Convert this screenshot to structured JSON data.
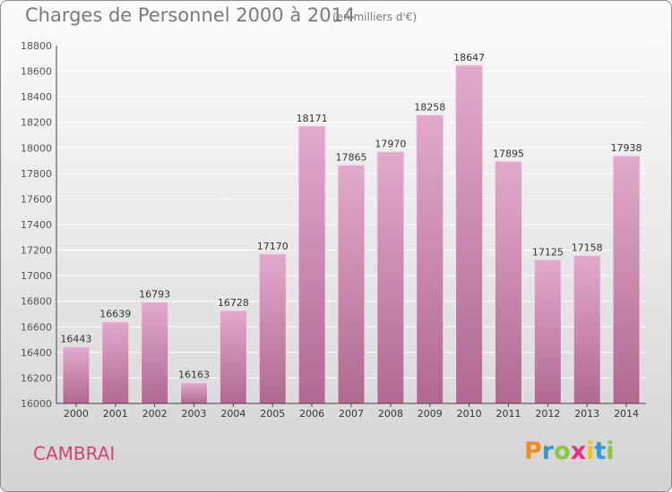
{
  "header": {
    "title": "Charges de Personnel 2000 à 2014",
    "subtitle": "(en milliers d'€)"
  },
  "footer": {
    "commune": "CAMBRAI",
    "logo_text": "Proxiti",
    "logo_colors": [
      "#f28c1e",
      "#2e9ad6",
      "#8cc63f",
      "#e8318a",
      "#f2c31e",
      "#2e9ad6",
      "#8cc63f"
    ]
  },
  "colors": {
    "bar_top": "#e2a9cd",
    "bar_bottom": "#b06992",
    "commune": "#d0447a"
  },
  "chart_data": {
    "type": "bar",
    "categories": [
      "2000",
      "2001",
      "2002",
      "2003",
      "2004",
      "2005",
      "2006",
      "2007",
      "2008",
      "2009",
      "2010",
      "2011",
      "2012",
      "2013",
      "2014"
    ],
    "values": [
      16443,
      16639,
      16793,
      16163,
      16728,
      17170,
      18171,
      17865,
      17970,
      18258,
      18647,
      17895,
      17125,
      17158,
      17938
    ],
    "ylim": [
      16000,
      18800
    ],
    "yticks": [
      16000,
      16200,
      16400,
      16600,
      16800,
      17000,
      17200,
      17400,
      17600,
      17800,
      18000,
      18200,
      18400,
      18600,
      18800
    ],
    "grid": true,
    "data_labels": true
  }
}
